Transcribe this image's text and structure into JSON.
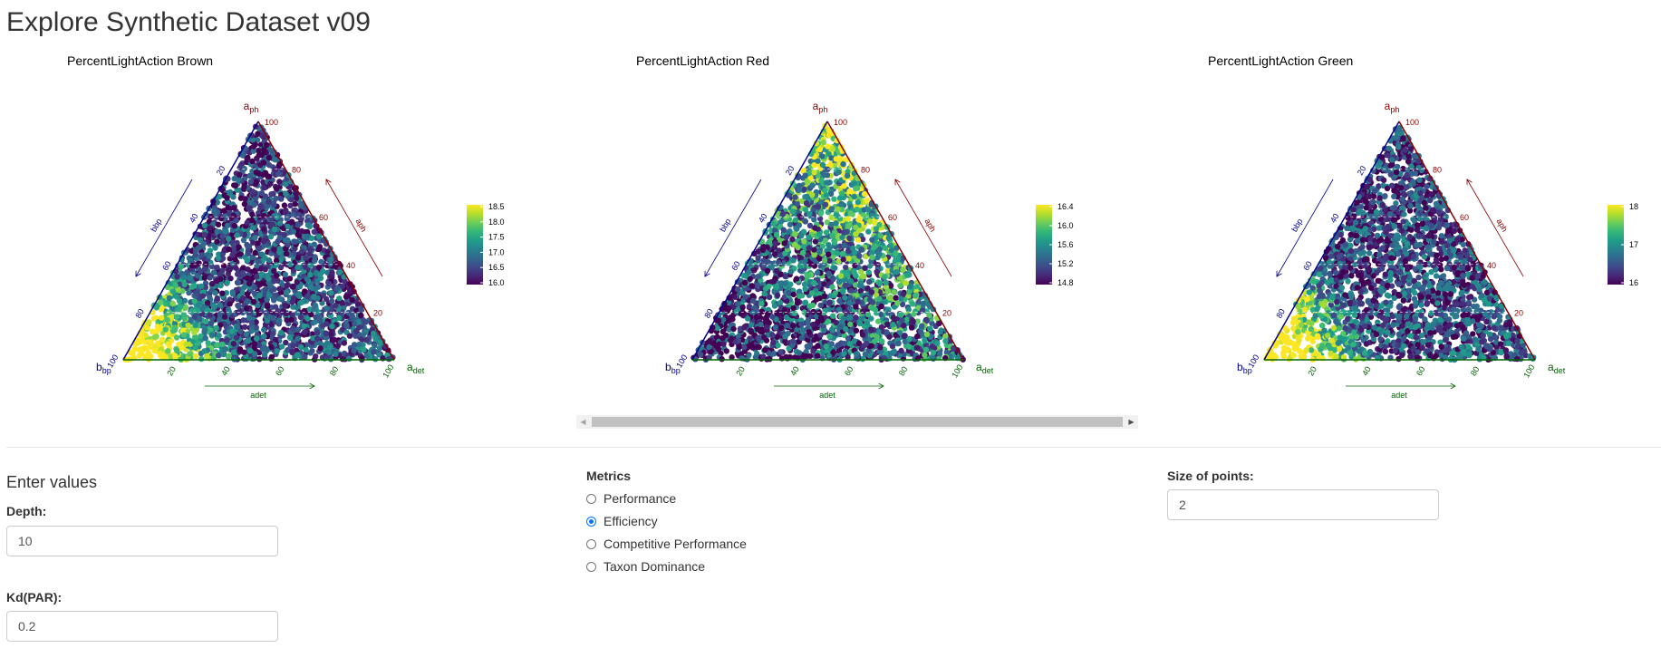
{
  "page": {
    "title": "Explore Synthetic Dataset v09"
  },
  "plots": [
    {
      "title": "PercentLightAction Brown",
      "cb_ticks": [
        "18.5",
        "18.0",
        "17.5",
        "17.0",
        "16.5",
        "16.0"
      ],
      "pattern": "brown"
    },
    {
      "title": "PercentLightAction Red",
      "cb_ticks": [
        "16.4",
        "16.0",
        "15.6",
        "15.2",
        "14.8"
      ],
      "pattern": "red"
    },
    {
      "title": "PercentLightAction Green",
      "cb_ticks": [
        "18",
        "17",
        "16"
      ],
      "pattern": "green"
    }
  ],
  "ternary": {
    "top_label": "a",
    "top_sub": "ph",
    "left_label": "b",
    "left_sub": "bp",
    "right_label": "a",
    "right_sub": "det",
    "left_ticks": [
      "20",
      "40",
      "60",
      "80",
      "100"
    ],
    "right_ticks": [
      "100",
      "80",
      "60",
      "40",
      "20"
    ],
    "bottom_ticks": [
      "20",
      "40",
      "60",
      "80",
      "100"
    ],
    "left_axis_title": "bbp",
    "right_axis_title": "aph",
    "bottom_axis_title": "adet"
  },
  "colors": {
    "viridis_low": "#440154",
    "viridis_mid": "#21908d",
    "viridis_high": "#fde725",
    "axis_left": "#00008b",
    "axis_right": "#8b0000",
    "axis_bottom": "#006400",
    "radio_accent": "#0075ff"
  },
  "inputs": {
    "heading": "Enter values",
    "depth_label": "Depth:",
    "depth_value": "10",
    "kd_label": "Kd(PAR):",
    "kd_value": "0.2",
    "size_label": "Size of points:",
    "size_value": "2"
  },
  "metrics": {
    "label": "Metrics",
    "options": [
      "Performance",
      "Efficiency",
      "Competitive Performance",
      "Taxon Dominance"
    ],
    "selected": "Efficiency"
  }
}
